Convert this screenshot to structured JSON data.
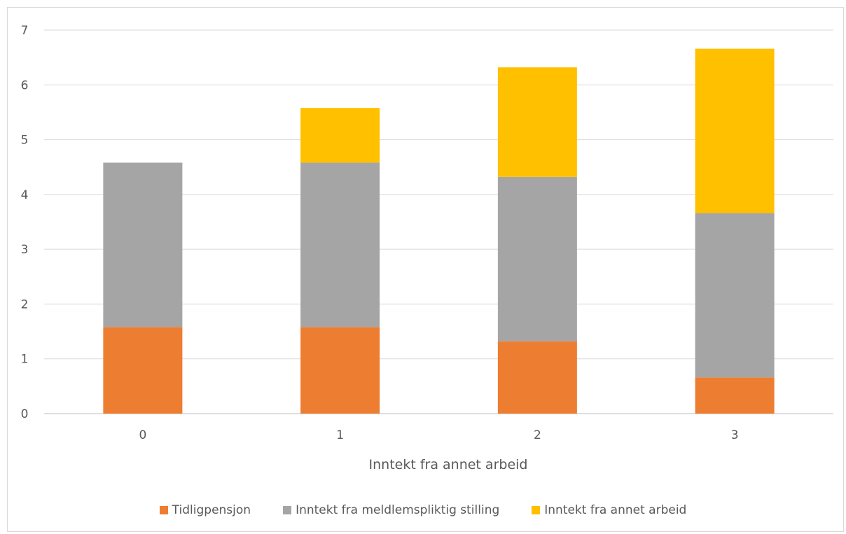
{
  "chart_data": {
    "type": "bar",
    "stacked": true,
    "categories": [
      "0",
      "1",
      "2",
      "3"
    ],
    "series": [
      {
        "name": "Tidligpensjon",
        "values": [
          1.58,
          1.58,
          1.32,
          0.66
        ],
        "color": "#ed7d31"
      },
      {
        "name": "Inntekt fra meldlemspliktig stilling",
        "values": [
          3.0,
          3.0,
          3.0,
          3.0
        ],
        "color": "#a5a5a5"
      },
      {
        "name": "Inntekt fra annet arbeid",
        "values": [
          0,
          1.0,
          2.0,
          3.0
        ],
        "color": "#ffc000"
      }
    ],
    "title": "",
    "xlabel": "Inntekt fra annet arbeid",
    "ylabel": "",
    "ylim": [
      0,
      7
    ],
    "yticks": [
      "0",
      "1",
      "2",
      "3",
      "4",
      "5",
      "6",
      "7"
    ],
    "grid": true,
    "legend_position": "bottom"
  }
}
